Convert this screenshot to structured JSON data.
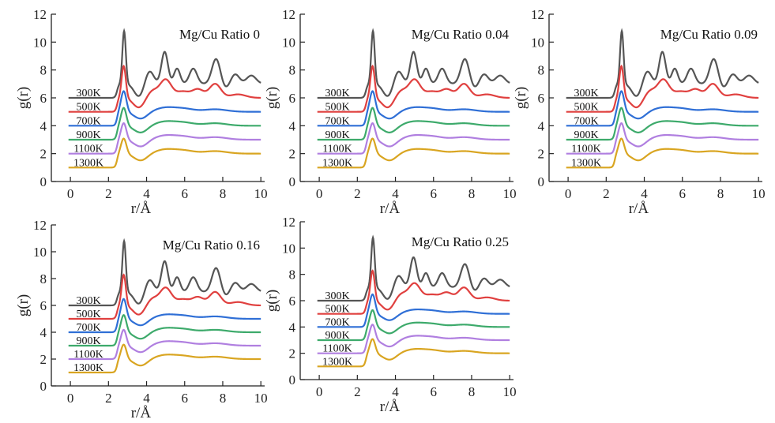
{
  "figure": {
    "panel_count": 5,
    "colors": {
      "300K": "#555555",
      "500K": "#e0403f",
      "700K": "#2f6fd6",
      "900K": "#3daa6b",
      "1100K": "#b07fe0",
      "1300K": "#d9a521"
    }
  },
  "chart_data": [
    {
      "type": "line",
      "title": "Mg/Cu Ratio 0",
      "xlabel": "r/Å",
      "ylabel": "g(r)",
      "xlim": [
        -1,
        10.2
      ],
      "ylim": [
        0,
        12
      ],
      "xticks": [
        0,
        2,
        4,
        6,
        8,
        10
      ],
      "yticks": [
        0,
        2,
        4,
        6,
        8,
        10,
        12
      ],
      "series": [
        {
          "name": "300K",
          "offset": 6,
          "shape": "sharp",
          "peak_height": 10.8
        },
        {
          "name": "500K",
          "offset": 5,
          "shape": "medium",
          "peak_height": 8.3
        },
        {
          "name": "700K",
          "offset": 4,
          "shape": "smooth",
          "peak_height": 6.5
        },
        {
          "name": "900K",
          "offset": 3,
          "shape": "smooth",
          "peak_height": 5.3
        },
        {
          "name": "1100K",
          "offset": 2,
          "shape": "smooth",
          "peak_height": 4.2
        },
        {
          "name": "1300K",
          "offset": 1,
          "shape": "smooth",
          "peak_height": 3.1
        }
      ]
    },
    {
      "type": "line",
      "title": "Mg/Cu Ratio 0.04",
      "xlabel": "r/Å",
      "ylabel": "g(r)",
      "xlim": [
        -1,
        10.2
      ],
      "ylim": [
        0,
        12
      ],
      "xticks": [
        0,
        2,
        4,
        6,
        8,
        10
      ],
      "yticks": [
        0,
        2,
        4,
        6,
        8,
        10,
        12
      ],
      "series": [
        {
          "name": "300K",
          "offset": 6,
          "shape": "sharp",
          "peak_height": 10.8
        },
        {
          "name": "500K",
          "offset": 5,
          "shape": "medium",
          "peak_height": 8.3
        },
        {
          "name": "700K",
          "offset": 4,
          "shape": "smooth",
          "peak_height": 6.5
        },
        {
          "name": "900K",
          "offset": 3,
          "shape": "smooth",
          "peak_height": 5.3
        },
        {
          "name": "1100K",
          "offset": 2,
          "shape": "smooth",
          "peak_height": 4.2
        },
        {
          "name": "1300K",
          "offset": 1,
          "shape": "smooth",
          "peak_height": 3.1
        }
      ]
    },
    {
      "type": "line",
      "title": "Mg/Cu Ratio 0.09",
      "xlabel": "r/Å",
      "ylabel": "g(r)",
      "xlim": [
        -1,
        10.2
      ],
      "ylim": [
        0,
        12
      ],
      "xticks": [
        0,
        2,
        4,
        6,
        8,
        10
      ],
      "yticks": [
        0,
        2,
        4,
        6,
        8,
        10,
        12
      ],
      "series": [
        {
          "name": "300K",
          "offset": 6,
          "shape": "sharp",
          "peak_height": 10.8
        },
        {
          "name": "500K",
          "offset": 5,
          "shape": "medium",
          "peak_height": 8.3
        },
        {
          "name": "700K",
          "offset": 4,
          "shape": "smooth",
          "peak_height": 6.5
        },
        {
          "name": "900K",
          "offset": 3,
          "shape": "smooth",
          "peak_height": 5.3
        },
        {
          "name": "1100K",
          "offset": 2,
          "shape": "smooth",
          "peak_height": 4.2
        },
        {
          "name": "1300K",
          "offset": 1,
          "shape": "smooth",
          "peak_height": 3.1
        }
      ]
    },
    {
      "type": "line",
      "title": "Mg/Cu Ratio 0.16",
      "xlabel": "r/Å",
      "ylabel": "g(r)",
      "xlim": [
        -1,
        10.2
      ],
      "ylim": [
        0,
        12
      ],
      "xticks": [
        0,
        2,
        4,
        6,
        8,
        10
      ],
      "yticks": [
        0,
        2,
        4,
        6,
        8,
        10,
        12
      ],
      "series": [
        {
          "name": "300K",
          "offset": 6,
          "shape": "sharp",
          "peak_height": 10.8
        },
        {
          "name": "500K",
          "offset": 5,
          "shape": "medium",
          "peak_height": 8.3
        },
        {
          "name": "700K",
          "offset": 4,
          "shape": "smooth",
          "peak_height": 6.5
        },
        {
          "name": "900K",
          "offset": 3,
          "shape": "smooth",
          "peak_height": 5.3
        },
        {
          "name": "1100K",
          "offset": 2,
          "shape": "smooth",
          "peak_height": 4.2
        },
        {
          "name": "1300K",
          "offset": 1,
          "shape": "smooth",
          "peak_height": 3.1
        }
      ]
    },
    {
      "type": "line",
      "title": "Mg/Cu Ratio 0.25",
      "xlabel": "r/Å",
      "ylabel": "g(r)",
      "xlim": [
        -1,
        10.2
      ],
      "ylim": [
        0,
        12
      ],
      "xticks": [
        0,
        2,
        4,
        6,
        8,
        10
      ],
      "yticks": [
        0,
        2,
        4,
        6,
        8,
        10,
        12
      ],
      "series": [
        {
          "name": "300K",
          "offset": 6,
          "shape": "sharp",
          "peak_height": 10.8
        },
        {
          "name": "500K",
          "offset": 5,
          "shape": "medium",
          "peak_height": 8.3
        },
        {
          "name": "700K",
          "offset": 4,
          "shape": "smooth",
          "peak_height": 6.5
        },
        {
          "name": "900K",
          "offset": 3,
          "shape": "smooth",
          "peak_height": 5.3
        },
        {
          "name": "1100K",
          "offset": 2,
          "shape": "smooth",
          "peak_height": 4.2
        },
        {
          "name": "1300K",
          "offset": 1,
          "shape": "smooth",
          "peak_height": 3.1
        }
      ]
    }
  ]
}
